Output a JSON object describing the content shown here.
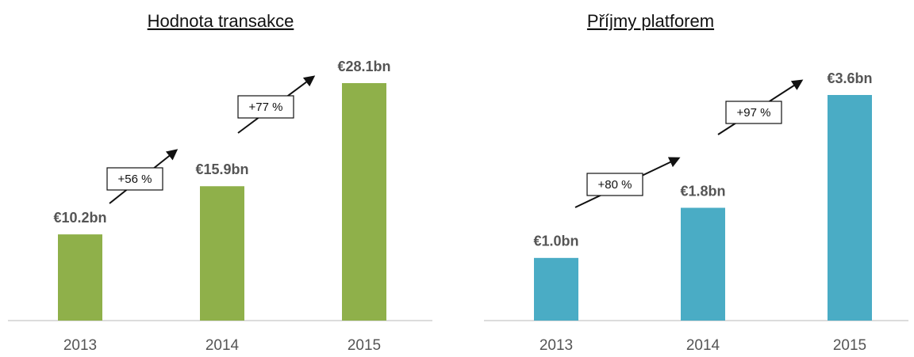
{
  "chart_data": [
    {
      "type": "bar",
      "title": "Hodnota transakce",
      "categories": [
        "2013",
        "2014",
        "2015"
      ],
      "values": [
        10.2,
        15.9,
        28.1
      ],
      "value_labels": [
        "€10.2bn",
        "€15.9bn",
        "€28.1bn"
      ],
      "color": "#8fb04a",
      "annotations": [
        "+56 %",
        "+77 %"
      ]
    },
    {
      "type": "bar",
      "title": "Příjmy platforem",
      "categories": [
        "2013",
        "2014",
        "2015"
      ],
      "values": [
        1.0,
        1.8,
        3.6
      ],
      "value_labels": [
        "€1.0bn",
        "€1.8bn",
        "€3.6bn"
      ],
      "color": "#4aacc5",
      "annotations": [
        "+80 %",
        "+97 %"
      ]
    }
  ]
}
